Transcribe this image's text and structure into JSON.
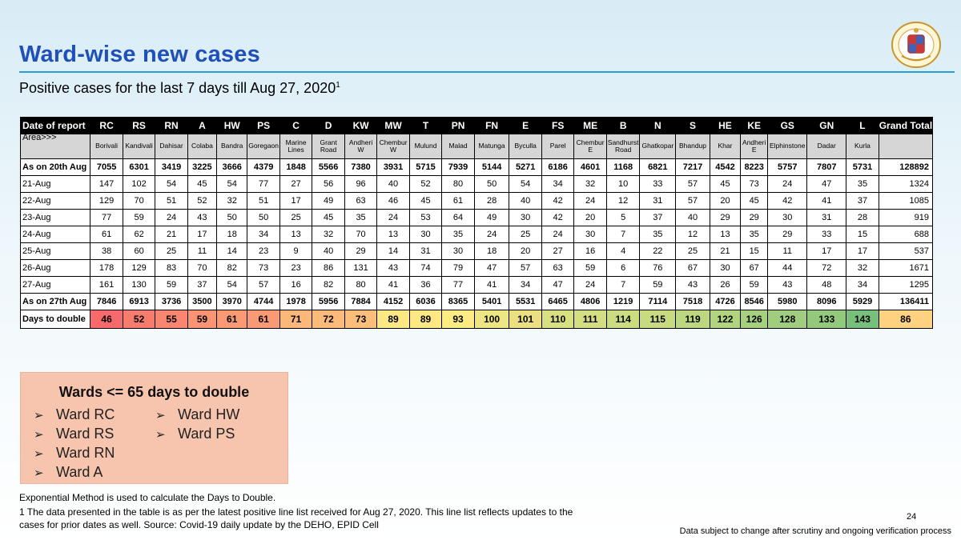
{
  "title": "Ward-wise new cases",
  "subtitle": "Positive cases for the last 7 days till Aug 27, 2020",
  "subtitle_sup": "1",
  "table": {
    "corner_header": "Date of report",
    "area_label": "Area>>>",
    "grand_total_header": "Grand Total",
    "wards": [
      "RC",
      "RS",
      "RN",
      "A",
      "HW",
      "PS",
      "C",
      "D",
      "KW",
      "MW",
      "T",
      "PN",
      "FN",
      "E",
      "FS",
      "ME",
      "B",
      "N",
      "S",
      "HE",
      "KE",
      "GS",
      "GN",
      "L"
    ],
    "areas": [
      "Borivali",
      "Kandivali",
      "Dahisar",
      "Colaba",
      "Bandra",
      "Goregaon",
      "Marine Lines",
      "Grant Road",
      "Andheri W",
      "Chembur W",
      "Mulund",
      "Malad",
      "Matunga",
      "Byculla",
      "Parel",
      "Chembur E",
      "Sandhurst Road",
      "Ghatkopar",
      "Bhandup",
      "Khar",
      "Andheri E",
      "Elphinstone",
      "Dadar",
      "Kurla"
    ],
    "rows": [
      {
        "label": "As on 20th Aug",
        "bold": true,
        "values": [
          "7055",
          "6301",
          "3419",
          "3225",
          "3666",
          "4379",
          "1848",
          "5566",
          "7380",
          "3931",
          "5715",
          "7939",
          "5144",
          "5271",
          "6186",
          "4601",
          "1168",
          "6821",
          "7217",
          "4542",
          "8223",
          "5757",
          "7807",
          "5731"
        ],
        "total": "128892"
      },
      {
        "label": "21-Aug",
        "bold": false,
        "values": [
          "147",
          "102",
          "54",
          "45",
          "54",
          "77",
          "27",
          "56",
          "96",
          "40",
          "52",
          "80",
          "50",
          "54",
          "34",
          "32",
          "10",
          "33",
          "57",
          "45",
          "73",
          "24",
          "47",
          "35"
        ],
        "total": "1324"
      },
      {
        "label": "22-Aug",
        "bold": false,
        "values": [
          "129",
          "70",
          "51",
          "52",
          "32",
          "51",
          "17",
          "49",
          "63",
          "46",
          "45",
          "61",
          "28",
          "40",
          "42",
          "24",
          "12",
          "31",
          "57",
          "20",
          "45",
          "42",
          "41",
          "37"
        ],
        "total": "1085"
      },
      {
        "label": "23-Aug",
        "bold": false,
        "values": [
          "77",
          "59",
          "24",
          "43",
          "50",
          "50",
          "25",
          "45",
          "35",
          "24",
          "53",
          "64",
          "49",
          "30",
          "42",
          "20",
          "5",
          "37",
          "40",
          "29",
          "29",
          "30",
          "31",
          "28"
        ],
        "total": "919"
      },
      {
        "label": "24-Aug",
        "bold": false,
        "values": [
          "61",
          "62",
          "21",
          "17",
          "18",
          "34",
          "13",
          "32",
          "70",
          "13",
          "30",
          "35",
          "24",
          "25",
          "24",
          "30",
          "7",
          "35",
          "12",
          "13",
          "35",
          "29",
          "33",
          "15"
        ],
        "total": "688"
      },
      {
        "label": "25-Aug",
        "bold": false,
        "values": [
          "38",
          "60",
          "25",
          "11",
          "14",
          "23",
          "9",
          "40",
          "29",
          "14",
          "31",
          "30",
          "18",
          "20",
          "27",
          "16",
          "4",
          "22",
          "25",
          "21",
          "15",
          "11",
          "17",
          "17"
        ],
        "total": "537"
      },
      {
        "label": "26-Aug",
        "bold": false,
        "values": [
          "178",
          "129",
          "83",
          "70",
          "82",
          "73",
          "23",
          "86",
          "131",
          "43",
          "74",
          "79",
          "47",
          "57",
          "63",
          "59",
          "6",
          "76",
          "67",
          "30",
          "67",
          "44",
          "72",
          "32"
        ],
        "total": "1671"
      },
      {
        "label": "27-Aug",
        "bold": false,
        "values": [
          "161",
          "130",
          "59",
          "37",
          "54",
          "57",
          "16",
          "82",
          "80",
          "41",
          "36",
          "77",
          "41",
          "34",
          "47",
          "24",
          "7",
          "59",
          "43",
          "26",
          "59",
          "43",
          "48",
          "34"
        ],
        "total": "1295"
      },
      {
        "label": "As on 27th Aug",
        "bold": true,
        "values": [
          "7846",
          "6913",
          "3736",
          "3500",
          "3970",
          "4744",
          "1978",
          "5956",
          "7884",
          "4152",
          "6036",
          "8365",
          "5401",
          "5531",
          "6465",
          "4806",
          "1219",
          "7114",
          "7518",
          "4726",
          "8546",
          "5980",
          "8096",
          "5929"
        ],
        "total": "136411"
      }
    ],
    "doubling": {
      "label": "Days to double",
      "values": [
        "46",
        "52",
        "55",
        "59",
        "61",
        "61",
        "71",
        "72",
        "73",
        "89",
        "89",
        "93",
        "100",
        "101",
        "110",
        "111",
        "114",
        "115",
        "119",
        "122",
        "126",
        "128",
        "133",
        "143"
      ],
      "total": "86",
      "colors": [
        "#f8696b",
        "#f87c6e",
        "#f98670",
        "#fa9473",
        "#fa9a74",
        "#fa9a74",
        "#fcb87a",
        "#fcbb7a",
        "#fcbf7b",
        "#fee883",
        "#fee883",
        "#fdeb84",
        "#eee683",
        "#ecdf82",
        "#d8e082",
        "#d5df82",
        "#ccdc81",
        "#c9db80",
        "#bdd780",
        "#b3d47f",
        "#a7d07e",
        "#a1ce7e",
        "#92c97c",
        "#77c07b"
      ],
      "total_color": "#fed280"
    }
  },
  "callout": {
    "title": "Wards <= 65 days to double",
    "left_items": [
      "Ward RC",
      "Ward RS",
      "Ward RN",
      "Ward A"
    ],
    "right_items": [
      "Ward HW",
      "Ward PS"
    ],
    "bullet_glyph": "➢"
  },
  "footnote_method": "Exponential Method is used to calculate the Days to Double.",
  "footnote_source": "1 The data presented in the table is as per the latest positive line list received for Aug 27, 2020. This line list reflects updates to the cases for prior dates as well. Source: Covid-19 daily update by the DEHO, EPID Cell",
  "page_number": "24",
  "disclaimer": "Data subject to change after scrutiny and ongoing verification process",
  "logo_icon": "mcgm-crest-icon",
  "colors": {
    "title": "#1f4fb8",
    "rule": "#2a9fd0",
    "callout_bg": "#f7c5ae",
    "area_row_bg": "#d6d6d6"
  }
}
